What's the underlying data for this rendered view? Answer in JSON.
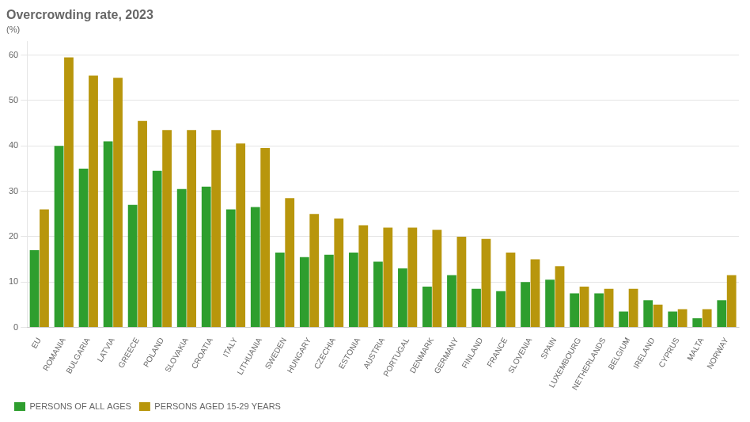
{
  "chart_data": {
    "type": "bar",
    "title": "Overcrowding rate, 2023",
    "subtitle": "(%)",
    "categories": [
      "EU",
      "ROMANIA",
      "BULGARIA",
      "LATVIA",
      "GREECE",
      "POLAND",
      "SLOVAKIA",
      "CROATIA",
      "ITALY",
      "LITHUANIA",
      "SWEDEN",
      "HUNGARY",
      "CZECHIA",
      "ESTONIA",
      "AUSTRIA",
      "PORTUGAL",
      "DENMARK",
      "GERMANY",
      "FINLAND",
      "FRANCE",
      "SLOVENIA",
      "SPAIN",
      "LUXEMBOURG",
      "NETHERLANDS",
      "BELGIUM",
      "IRELAND",
      "CYPRUS",
      "MALTA",
      "NORWAY"
    ],
    "series": [
      {
        "name": "PERSONS OF ALL AGES",
        "color": "#2e9e2e",
        "values": [
          17.0,
          40.0,
          35.0,
          41.0,
          27.0,
          34.5,
          30.5,
          31.0,
          26.0,
          26.5,
          16.5,
          15.5,
          16.0,
          16.5,
          14.5,
          13.0,
          9.0,
          11.5,
          8.5,
          8.0,
          10.0,
          10.5,
          7.5,
          7.5,
          3.5,
          6.0,
          3.5,
          2.0,
          6.0
        ]
      },
      {
        "name": "PERSONS AGED 15-29 YEARS",
        "color": "#b8960c",
        "values": [
          26.0,
          59.5,
          55.5,
          55.0,
          45.5,
          43.5,
          43.5,
          43.5,
          40.5,
          39.5,
          28.5,
          25.0,
          24.0,
          22.5,
          22.0,
          22.0,
          21.5,
          20.0,
          19.5,
          16.5,
          15.0,
          13.5,
          9.0,
          8.5,
          8.5,
          5.0,
          4.0,
          4.0,
          11.5
        ]
      }
    ],
    "ylim": [
      0,
      63
    ],
    "yticks": [
      0,
      10,
      20,
      30,
      40,
      50,
      60
    ],
    "grid": true,
    "legend": "lower left"
  }
}
